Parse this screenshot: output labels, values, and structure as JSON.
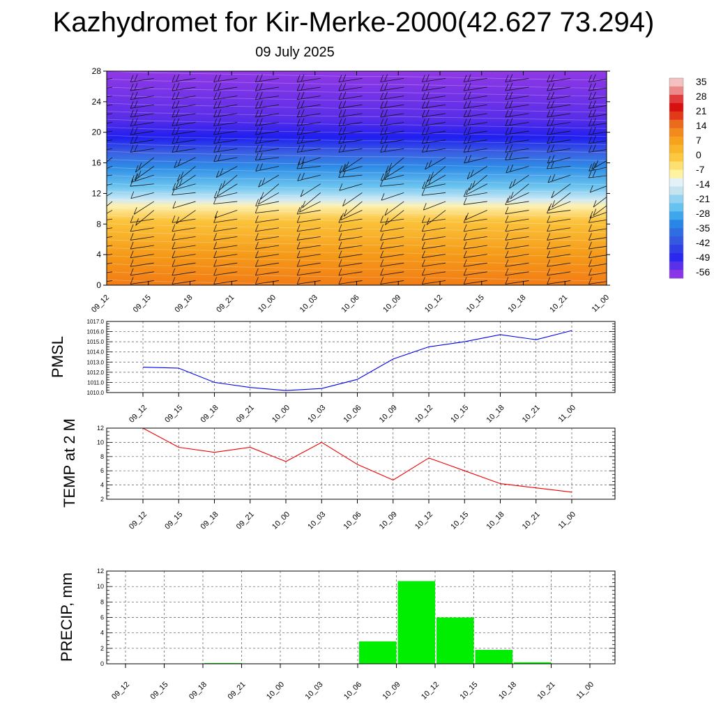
{
  "page": {
    "title": "Kazhydromet for Kir-Merke-2000(42.627 73.294)",
    "subtitle": "09 July 2025"
  },
  "chart_data": [
    {
      "type": "heatmap",
      "title": "Kazhydromet for Kir-Merke-2000(42.627 73.294)",
      "subtitle": "09 July 2025",
      "x": [
        "09_12",
        "09_15",
        "09_18",
        "09_21",
        "10_00",
        "10_03",
        "10_06",
        "10_09",
        "10_12",
        "10_15",
        "10_18",
        "10_21",
        "11_00"
      ],
      "y_ticks": [
        0,
        4,
        8,
        12,
        16,
        20,
        24,
        28
      ],
      "ylim": [
        0,
        28
      ],
      "zero_line_height": [
        11.2,
        11.0,
        10.9,
        10.8,
        10.7,
        10.6,
        10.5,
        10.5,
        10.4,
        10.3,
        10.2,
        10.1,
        10.0
      ],
      "colorbar": {
        "labels": [
          "35",
          "28",
          "21",
          "14",
          "7",
          "0",
          "-7",
          "-14",
          "-21",
          "-28",
          "-35",
          "-42",
          "-49",
          "-56"
        ],
        "colors": [
          "#f0b4b4",
          "#e03c3c",
          "#d60f0f",
          "#e8501c",
          "#f07a1e",
          "#f6a21c",
          "#fbc43a",
          "#fdf3a0",
          "#c6e4f0",
          "#66c2ee",
          "#2a86e6",
          "#3458e0",
          "#2a28ee",
          "#8b35e8"
        ]
      },
      "wind_barbs": true
    },
    {
      "type": "line",
      "ylabel": "PMSL",
      "x": [
        "09_12",
        "09_15",
        "09_18",
        "09_21",
        "10_00",
        "10_03",
        "10_06",
        "10_09",
        "10_12",
        "10_15",
        "10_18",
        "10_21",
        "11_00"
      ],
      "values": [
        1012.5,
        1012.4,
        1011.0,
        1010.5,
        1010.2,
        1010.4,
        1011.3,
        1013.3,
        1014.5,
        1015.0,
        1015.7,
        1015.2,
        1016.1
      ],
      "ylim": [
        1010.0,
        1017.0
      ],
      "y_ticks": [
        "1010.0",
        "1011.0",
        "1012.0",
        "1013.0",
        "1014.0",
        "1015.0",
        "1016.0",
        "1017.0"
      ],
      "color": "#0000ee",
      "grid": true
    },
    {
      "type": "line",
      "ylabel": "TEMP at 2 M",
      "x": [
        "09_12",
        "09_15",
        "09_18",
        "09_21",
        "10_00",
        "10_03",
        "10_06",
        "10_09",
        "10_12",
        "10_15",
        "10_18",
        "10_21",
        "11_00"
      ],
      "values": [
        12.0,
        9.3,
        8.6,
        9.3,
        7.3,
        10.0,
        6.9,
        4.7,
        7.8,
        6.0,
        4.2,
        3.6,
        3.0
      ],
      "ylim": [
        2,
        12
      ],
      "y_ticks": [
        "2",
        "4",
        "6",
        "8",
        "10",
        "12"
      ],
      "color": "#ee0000",
      "grid": true
    },
    {
      "type": "bar",
      "ylabel": "PRECIP, mm",
      "x": [
        "09_12",
        "09_15",
        "09_18",
        "09_21",
        "10_00",
        "10_03",
        "10_06",
        "10_09",
        "10_12",
        "10_15",
        "10_18",
        "10_21",
        "11_00"
      ],
      "values": [
        0,
        0,
        0.1,
        0.05,
        0,
        0,
        2.9,
        10.7,
        6.0,
        1.8,
        0.2,
        0.05,
        0
      ],
      "ylim": [
        0,
        12
      ],
      "y_ticks": [
        "0",
        "2",
        "4",
        "6",
        "8",
        "10",
        "12"
      ],
      "color": "#00ee00",
      "grid": true
    }
  ]
}
